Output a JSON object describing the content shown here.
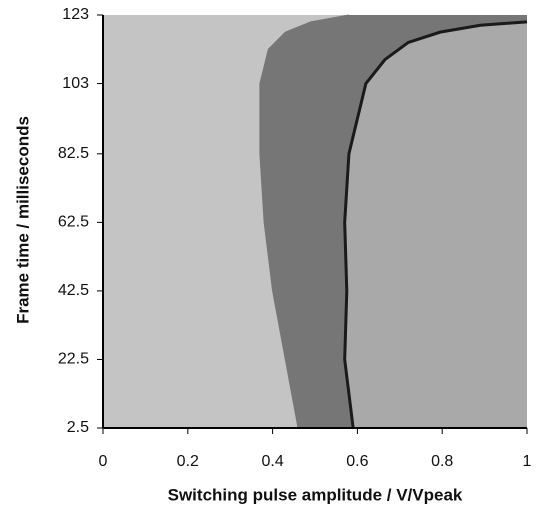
{
  "chart_data": {
    "type": "region-map",
    "xlabel": "Switching pulse amplitude / V/Vpeak",
    "ylabel": "Frame time / milliseconds",
    "xlim": [
      0,
      1
    ],
    "xticks": [
      0,
      0.2,
      0.4,
      0.6,
      0.8,
      1
    ],
    "ylim": [
      2.5,
      123
    ],
    "yticks": [
      2.5,
      22.5,
      42.5,
      62.5,
      82.5,
      103,
      123
    ],
    "background_color": "#c4c4c4",
    "band_color": "#767676",
    "right_color": "#a9a9a9",
    "boundaries": [
      {
        "color": "#767676",
        "x": [
          0.46,
          0.43,
          0.4,
          0.38,
          0.37,
          0.37,
          0.39,
          0.43,
          0.49,
          0.58
        ],
        "values": [
          2.5,
          22.5,
          42.5,
          62.5,
          82.5,
          103,
          113,
          118,
          121,
          123
        ]
      },
      {
        "color": "#1a1a1a",
        "x": [
          0.59,
          0.57,
          0.575,
          0.57,
          0.58,
          0.62,
          0.665,
          0.72,
          0.795,
          0.89,
          1
        ],
        "values": [
          2.5,
          22.5,
          42.5,
          62.5,
          82.5,
          103,
          110,
          115,
          118,
          120,
          121
        ]
      }
    ]
  }
}
